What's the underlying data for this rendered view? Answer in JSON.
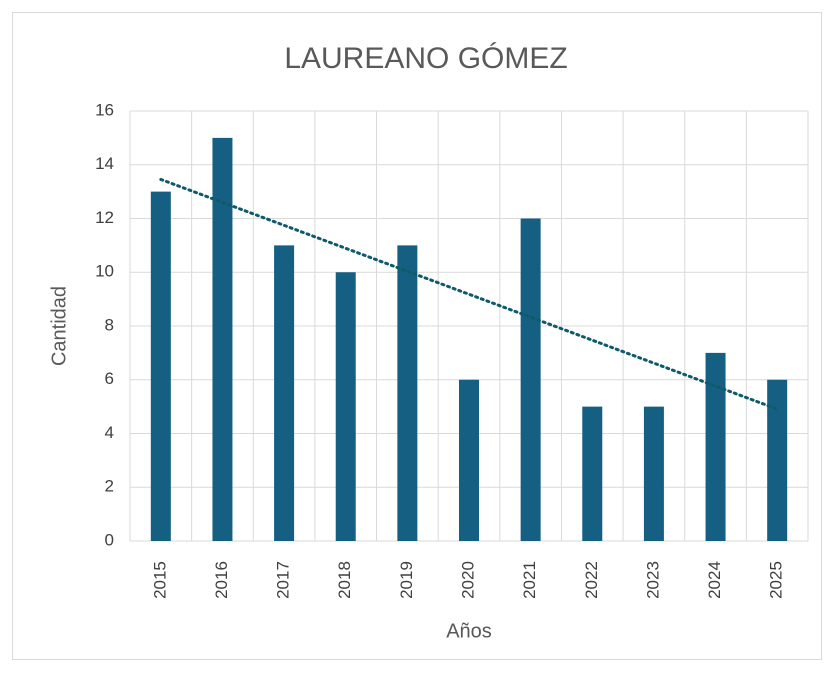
{
  "chart_data": {
    "type": "bar",
    "title": "LAUREANO GÓMEZ",
    "categories": [
      "2015",
      "2016",
      "2017",
      "2018",
      "2019",
      "2020",
      "2021",
      "2022",
      "2023",
      "2024",
      "2025"
    ],
    "values": [
      13,
      15,
      11,
      10,
      11,
      6,
      12,
      5,
      5,
      7,
      6
    ],
    "color": "#156082",
    "x_label": "Años",
    "y_label": "Cantidad",
    "ylim": [
      0,
      16
    ],
    "yticks": [
      0,
      2,
      4,
      6,
      8,
      10,
      12,
      14,
      16
    ],
    "grid": true,
    "trendline": "linear",
    "trendline_color": "#0e5a6b"
  }
}
